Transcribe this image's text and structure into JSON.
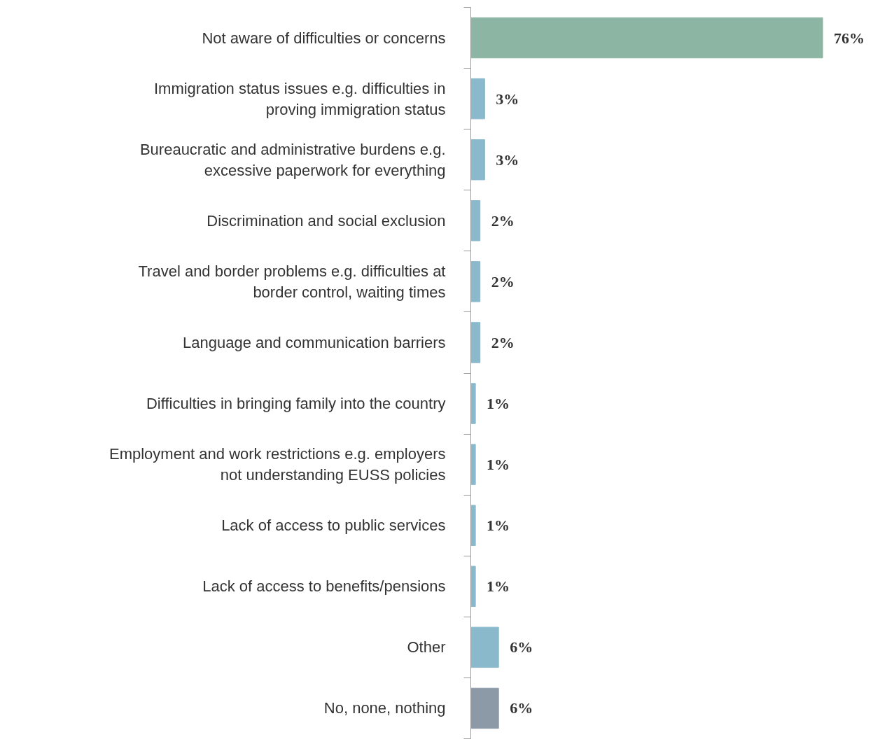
{
  "chart_data": {
    "type": "bar",
    "orientation": "horizontal",
    "categories": [
      "Not aware of difficulties or concerns",
      "Immigration status issues e.g. difficulties in proving immigration status",
      "Bureaucratic and administrative burdens e.g. excessive paperwork for everything",
      "Discrimination and social exclusion",
      "Travel and border problems e.g. difficulties at border control, waiting times",
      "Language and communication barriers",
      "Difficulties in bringing family into the country",
      "Employment and work restrictions e.g. employers not understanding EUSS policies",
      "Lack of access to public services",
      "Lack of access to benefits/pensions",
      "Other",
      "No, none, nothing"
    ],
    "values": [
      76,
      3,
      3,
      2,
      2,
      2,
      1,
      1,
      1,
      1,
      6,
      6
    ],
    "value_labels": [
      "76%",
      "3%",
      "3%",
      "2%",
      "2%",
      "2%",
      "1%",
      "1%",
      "1%",
      "1%",
      "6%",
      "6%"
    ],
    "colors": [
      "#8db5a3",
      "#8ab9cc",
      "#8ab9cc",
      "#8ab9cc",
      "#8ab9cc",
      "#8ab9cc",
      "#8ab9cc",
      "#8ab9cc",
      "#8ab9cc",
      "#8ab9cc",
      "#8ab9cc",
      "#8c9aa8"
    ]
  }
}
